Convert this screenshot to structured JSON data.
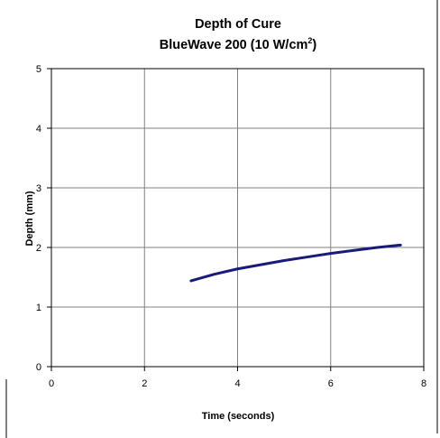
{
  "chart_data": {
    "type": "line",
    "title": "Depth of Cure",
    "subtitle": {
      "base": "BlueWave 200 (10 W/cm",
      "superscript": "2",
      "suffix": ")"
    },
    "xlabel": "Time (seconds)",
    "ylabel": "Depth (mm)",
    "xlim": [
      0,
      8
    ],
    "ylim": [
      0,
      5
    ],
    "xticks": [
      0,
      2,
      4,
      6,
      8
    ],
    "yticks": [
      0,
      1,
      2,
      3,
      4,
      5
    ],
    "grid": true,
    "legend": "none",
    "series": [
      {
        "color": "#1a1a7a",
        "x": [
          3.0,
          3.5,
          4.0,
          4.5,
          5.0,
          5.5,
          6.0,
          6.5,
          7.0,
          7.5
        ],
        "y": [
          1.44,
          1.55,
          1.64,
          1.71,
          1.78,
          1.84,
          1.9,
          1.95,
          2.0,
          2.04
        ]
      }
    ]
  },
  "colors": {
    "plot_border": "#000000",
    "grid": "#808080",
    "frame": "#000000"
  }
}
